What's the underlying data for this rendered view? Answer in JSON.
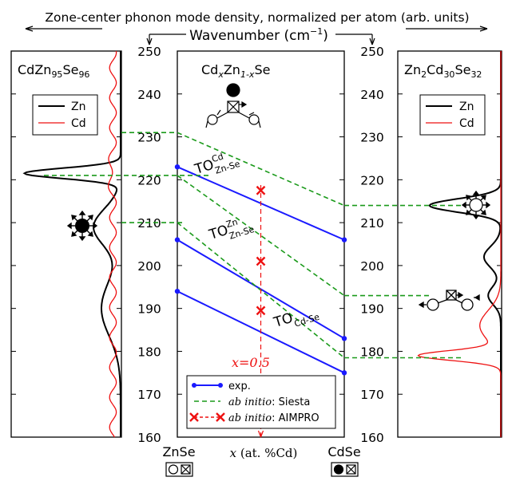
{
  "header": {
    "title": "Zone-center phonon mode density, normalized per atom (arb. units)",
    "subtitle": "Wavenumber (cm",
    "subtitle_sup": "−1",
    "subtitle_end": ")"
  },
  "axis": {
    "ylim": [
      160,
      250
    ],
    "ticks": [
      160,
      170,
      180,
      190,
      200,
      210,
      220,
      230,
      240,
      250
    ],
    "tick_labels": [
      "160",
      "170",
      "180",
      "190",
      "200",
      "210",
      "220",
      "230",
      "240",
      "250"
    ]
  },
  "panels": {
    "left": {
      "title_base": "CdZn",
      "title_sub1": "95",
      "title_mid": "Se",
      "title_sub2": "96",
      "legend": [
        "Zn",
        "Cd"
      ]
    },
    "center": {
      "title_a": "Cd",
      "title_x": "x",
      "title_b": "Zn",
      "title_sub": "1-x",
      "title_c": "Se",
      "xlabel_var": "x",
      "xlabel_rest": " (at. %Cd)",
      "left_compound": "ZnSe",
      "right_compound": "CdSe",
      "x_marker": "x=0.5"
    },
    "right": {
      "title_base": "Zn",
      "title_sub1": "2",
      "title_mid": "Cd",
      "title_sub2": "30",
      "title_end": "Se",
      "title_sub3": "32",
      "legend": [
        "Zn",
        "Cd"
      ]
    }
  },
  "chart_data": [
    {
      "type": "line",
      "panel": "center",
      "xlabel": "x (at. %Cd)",
      "ylabel": "Wavenumber (cm−1)",
      "xlim": [
        0,
        1
      ],
      "ylim": [
        160,
        250
      ],
      "series": [
        {
          "name": "exp.",
          "mode": "TO Cd Zn-Se",
          "x": [
            0,
            1
          ],
          "y": [
            223,
            206
          ]
        },
        {
          "name": "exp.",
          "mode": "TO Zn Zn-Se",
          "x": [
            0,
            1
          ],
          "y": [
            206,
            183
          ]
        },
        {
          "name": "exp.",
          "mode": "TO Cd-Se",
          "x": [
            0,
            1
          ],
          "y": [
            194,
            175
          ]
        },
        {
          "name": "ab initio: Siesta",
          "x": [
            0,
            1
          ],
          "y": [
            231,
            214
          ]
        },
        {
          "name": "ab initio: Siesta",
          "x": [
            0,
            1
          ],
          "y": [
            221,
            193
          ]
        },
        {
          "name": "ab initio: Siesta",
          "x": [
            0,
            1
          ],
          "y": [
            210,
            178.5
          ]
        },
        {
          "name": "ab initio: AIMPRO",
          "x": [
            0.5,
            0.5,
            0.5
          ],
          "y": [
            217.5,
            201,
            189.5
          ]
        }
      ],
      "annotations": [
        {
          "text": "TO",
          "sup": "Cd",
          "sub": "Zn-Se"
        },
        {
          "text": "TO",
          "sup": "Zn",
          "sub": "Zn-Se"
        },
        {
          "text": "TO",
          "sub": "Cd-Se"
        },
        {
          "text": "x=0.5"
        }
      ],
      "legend": [
        {
          "label": "exp."
        },
        {
          "label_italic": "ab initio",
          "label_rest": ": Siesta"
        },
        {
          "label_italic": "ab initio",
          "label_rest": ": AIMPRO"
        }
      ],
      "colors": {
        "exp": "#1a1aff",
        "siesta": "#1a9a1a",
        "aimpro": "#ee1111"
      }
    },
    {
      "type": "line",
      "panel": "left",
      "orientation": "horizontal density vs wavenumber",
      "ylim": [
        160,
        250
      ],
      "series": [
        {
          "name": "Zn",
          "color": "#000000",
          "peak_center": 221.5,
          "peak_width": 1.7,
          "peak_height": 1.0,
          "shoulder": [
            [
              209,
              6,
              0.28
            ],
            [
              190,
              9,
              0.2
            ]
          ]
        },
        {
          "name": "Cd",
          "color": "#ee1111",
          "peak_center": 221.5,
          "peak_width": 3,
          "peak_height": 0.04,
          "baseline": 0.08
        }
      ],
      "peak_labels": [
        221,
        210
      ]
    },
    {
      "type": "line",
      "panel": "right",
      "orientation": "horizontal density vs wavenumber",
      "ylim": [
        160,
        250
      ],
      "series": [
        {
          "name": "Zn",
          "color": "#000000",
          "peak_center": 214,
          "peak_width": 2.2,
          "peak_height": 0.85,
          "shoulder": [
            [
              202,
              3.5,
              0.2
            ],
            [
              193,
              3,
              0.15
            ]
          ]
        },
        {
          "name": "Cd",
          "color": "#ee1111",
          "peak_center": 179,
          "peak_width": 1.6,
          "peak_height": 0.95,
          "shoulder": [
            [
              186,
              5,
              0.25
            ]
          ]
        }
      ],
      "peak_labels": [
        214,
        193,
        178.5
      ]
    }
  ]
}
